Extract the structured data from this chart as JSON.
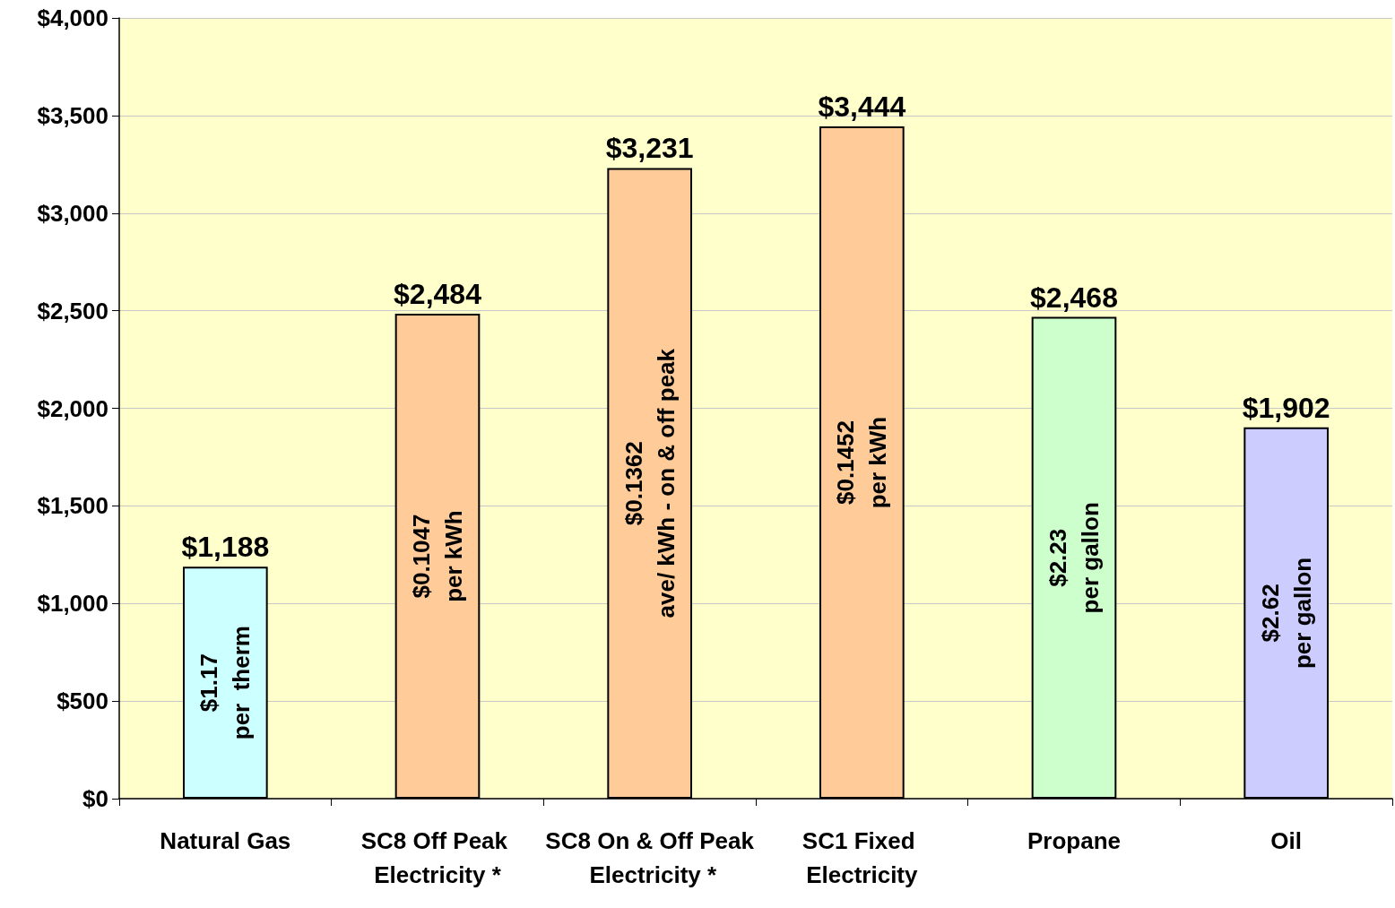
{
  "chart_data": {
    "type": "bar",
    "categories": [
      "Natural Gas",
      "SC8 Off Peak Electricity *",
      "SC8 On & Off Peak Electricity *",
      "SC1 Fixed Electricity",
      "Propane",
      "Oil"
    ],
    "values": [
      1188,
      2484,
      3231,
      3444,
      2468,
      1902
    ],
    "colors": [
      "#ccffff",
      "#ffcc99",
      "#ffcc99",
      "#ffcc99",
      "#ccffcc",
      "#ccccff"
    ],
    "value_labels": [
      "$1,188",
      "$2,484",
      "$3,231",
      "$3,444",
      "$2,468",
      "$1,902"
    ],
    "ylim": [
      0,
      4000
    ],
    "yticks": [
      {
        "value": 0,
        "label": "$0"
      },
      {
        "value": 500,
        "label": "$500"
      },
      {
        "value": 1000,
        "label": "$1,000"
      },
      {
        "value": 1500,
        "label": "$1,500"
      },
      {
        "value": 2000,
        "label": "$2,000"
      },
      {
        "value": 2500,
        "label": "$2,500"
      },
      {
        "value": 3000,
        "label": "$3,000"
      },
      {
        "value": 3500,
        "label": "$3,500"
      },
      {
        "value": 4000,
        "label": "$4,000"
      }
    ],
    "grid": "y",
    "annotations": [
      "$1.17\nper  therm",
      "$0.1047\nper kWh",
      "$0.1362\nave/ kWh - on & off peak",
      "$0.1452\nper kWh",
      "$2.23\nper gallon",
      "$2.62\nper gallon"
    ]
  }
}
